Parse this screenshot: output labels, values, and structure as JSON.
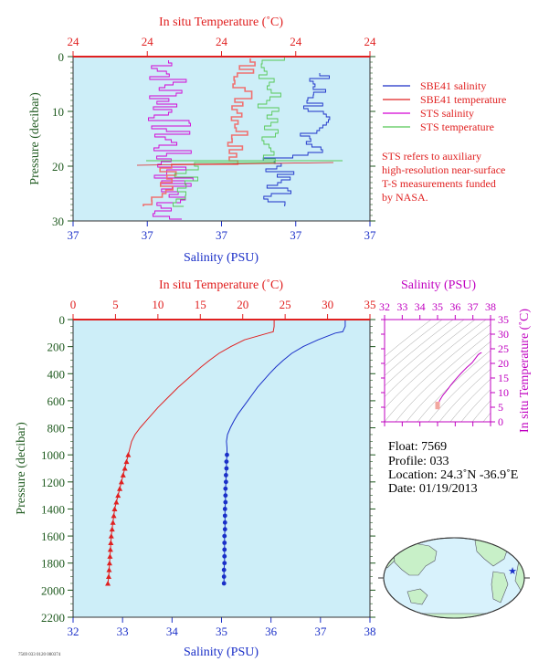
{
  "colors": {
    "panel_bg": "#cdeef8",
    "salinity": "#1a2fc8",
    "temperature": "#e02020",
    "sts_salinity": "#d400d4",
    "sts_temperature": "#55c855",
    "ts_magenta": "#c000c0",
    "ts_fill": "#f2a7a0",
    "pressure_axis": "#1f5a1f",
    "land": "#c8f0c8",
    "ocean": "#d8f2fc"
  },
  "top_panel": {
    "title": "In situ Temperature (˚C)",
    "xlabel": "Salinity (PSU)",
    "ylabel": "Pressure (decibar)",
    "top_ticks": [
      "24",
      "24",
      "24",
      "24",
      "24"
    ],
    "bottom_ticks": [
      "37",
      "37",
      "37",
      "37",
      "37"
    ],
    "y_ticks": [
      "0",
      "10",
      "20",
      "30"
    ],
    "legend": [
      {
        "label": "SBE41 salinity",
        "color": "#1a2fc8"
      },
      {
        "label": "SBE41 temperature",
        "color": "#e02020"
      },
      {
        "label": "STS salinity",
        "color": "#d400d4"
      },
      {
        "label": "STS temperature",
        "color": "#55c855"
      }
    ],
    "note": [
      "STS refers to auxiliary",
      "high-resolution near-surface",
      "T-S measurements funded",
      "by NASA."
    ]
  },
  "main_panel": {
    "title": "In situ Temperature (˚C)",
    "xlabel": "Salinity (PSU)",
    "ylabel": "Pressure (decibar)",
    "top_ticks": [
      "0",
      "5",
      "10",
      "15",
      "20",
      "25",
      "30",
      "35"
    ],
    "bottom_ticks": [
      "32",
      "33",
      "34",
      "35",
      "36",
      "37",
      "38"
    ],
    "y_ticks": [
      "0",
      "200",
      "400",
      "600",
      "800",
      "1000",
      "1200",
      "1400",
      "1600",
      "1800",
      "2000",
      "2200"
    ]
  },
  "ts_panel": {
    "title": "Salinity (PSU)",
    "ylabel": "In situ Temperature (˚C)",
    "x_ticks": [
      "32",
      "33",
      "34",
      "35",
      "36",
      "37",
      "38"
    ],
    "y_ticks": [
      "0",
      "5",
      "10",
      "15",
      "20",
      "25",
      "30",
      "35"
    ]
  },
  "info": {
    "float": "Float:  7569",
    "profile": "Profile:  033",
    "location": "Location:  24.3˚N  -36.9˚E",
    "date": "Date:  01/19/2013"
  },
  "map": {
    "marker_label": "float location"
  },
  "footer_code": "7569 033 0120 000374",
  "chart_data": [
    {
      "type": "line",
      "title": "In situ Temperature (˚C)",
      "xlabel": "Salinity (PSU)",
      "ylabel": "Pressure (decibar)",
      "ylim": [
        0,
        2200
      ],
      "temperature_xlim": [
        0,
        35
      ],
      "salinity_xlim": [
        32,
        38
      ],
      "series": [
        {
          "name": "SBE41 salinity",
          "pressure": [
            0,
            20,
            50,
            90,
            100,
            150,
            200,
            250,
            300,
            350,
            400,
            450,
            500,
            550,
            600,
            650,
            700,
            750,
            800,
            850,
            900,
            950,
            1000,
            1050,
            1100,
            1150,
            1200,
            1250,
            1300,
            1350,
            1400,
            1450,
            1500,
            1550,
            1600,
            1650,
            1700,
            1750,
            1800,
            1850,
            1900,
            1950
          ],
          "values": [
            37.5,
            37.5,
            37.5,
            37.45,
            37.3,
            36.95,
            36.65,
            36.42,
            36.25,
            36.1,
            35.97,
            35.85,
            35.73,
            35.63,
            35.53,
            35.43,
            35.33,
            35.25,
            35.18,
            35.12,
            35.1,
            35.11,
            35.11,
            35.1,
            35.1,
            35.09,
            35.09,
            35.08,
            35.08,
            35.08,
            35.07,
            35.07,
            35.07,
            35.07,
            35.06,
            35.06,
            35.06,
            35.06,
            35.06,
            35.05,
            35.05,
            35.05
          ]
        },
        {
          "name": "SBE41 temperature",
          "pressure": [
            0,
            20,
            50,
            90,
            100,
            150,
            200,
            250,
            300,
            350,
            400,
            450,
            500,
            550,
            600,
            650,
            700,
            750,
            800,
            850,
            900,
            950,
            1000,
            1050,
            1100,
            1150,
            1200,
            1250,
            1300,
            1350,
            1400,
            1450,
            1500,
            1550,
            1600,
            1650,
            1700,
            1750,
            1800,
            1850,
            1900,
            1950
          ],
          "values": [
            23.7,
            23.7,
            23.7,
            23.6,
            23.0,
            20.2,
            18.6,
            17.2,
            16.1,
            15.1,
            14.2,
            13.3,
            12.4,
            11.6,
            10.8,
            10.0,
            9.3,
            8.6,
            7.9,
            7.3,
            6.9,
            6.7,
            6.5,
            6.3,
            6.1,
            5.9,
            5.7,
            5.5,
            5.3,
            5.1,
            4.9,
            4.8,
            4.7,
            4.6,
            4.5,
            4.45,
            4.4,
            4.35,
            4.3,
            4.25,
            4.2,
            4.1
          ]
        }
      ]
    },
    {
      "type": "scatter",
      "title": "Salinity (PSU)",
      "ylabel": "In situ Temperature (˚C)",
      "xlim": [
        32,
        38
      ],
      "ylim": [
        0,
        35
      ],
      "series": [
        {
          "name": "",
          "x": [
            37.5,
            37.45,
            37.3,
            36.95,
            36.65,
            36.42,
            36.25,
            36.1,
            35.97,
            35.85,
            35.73,
            35.63,
            35.53,
            35.43,
            35.33,
            35.25,
            35.18,
            35.12,
            35.1,
            35.1,
            35.08,
            35.06
          ],
          "y": [
            23.7,
            23.6,
            23.0,
            20.2,
            18.6,
            17.2,
            16.1,
            15.1,
            14.2,
            13.3,
            12.4,
            11.6,
            10.8,
            10.0,
            9.3,
            8.6,
            7.9,
            7.3,
            6.9,
            6.1,
            5.3,
            4.3
          ]
        }
      ]
    }
  ]
}
